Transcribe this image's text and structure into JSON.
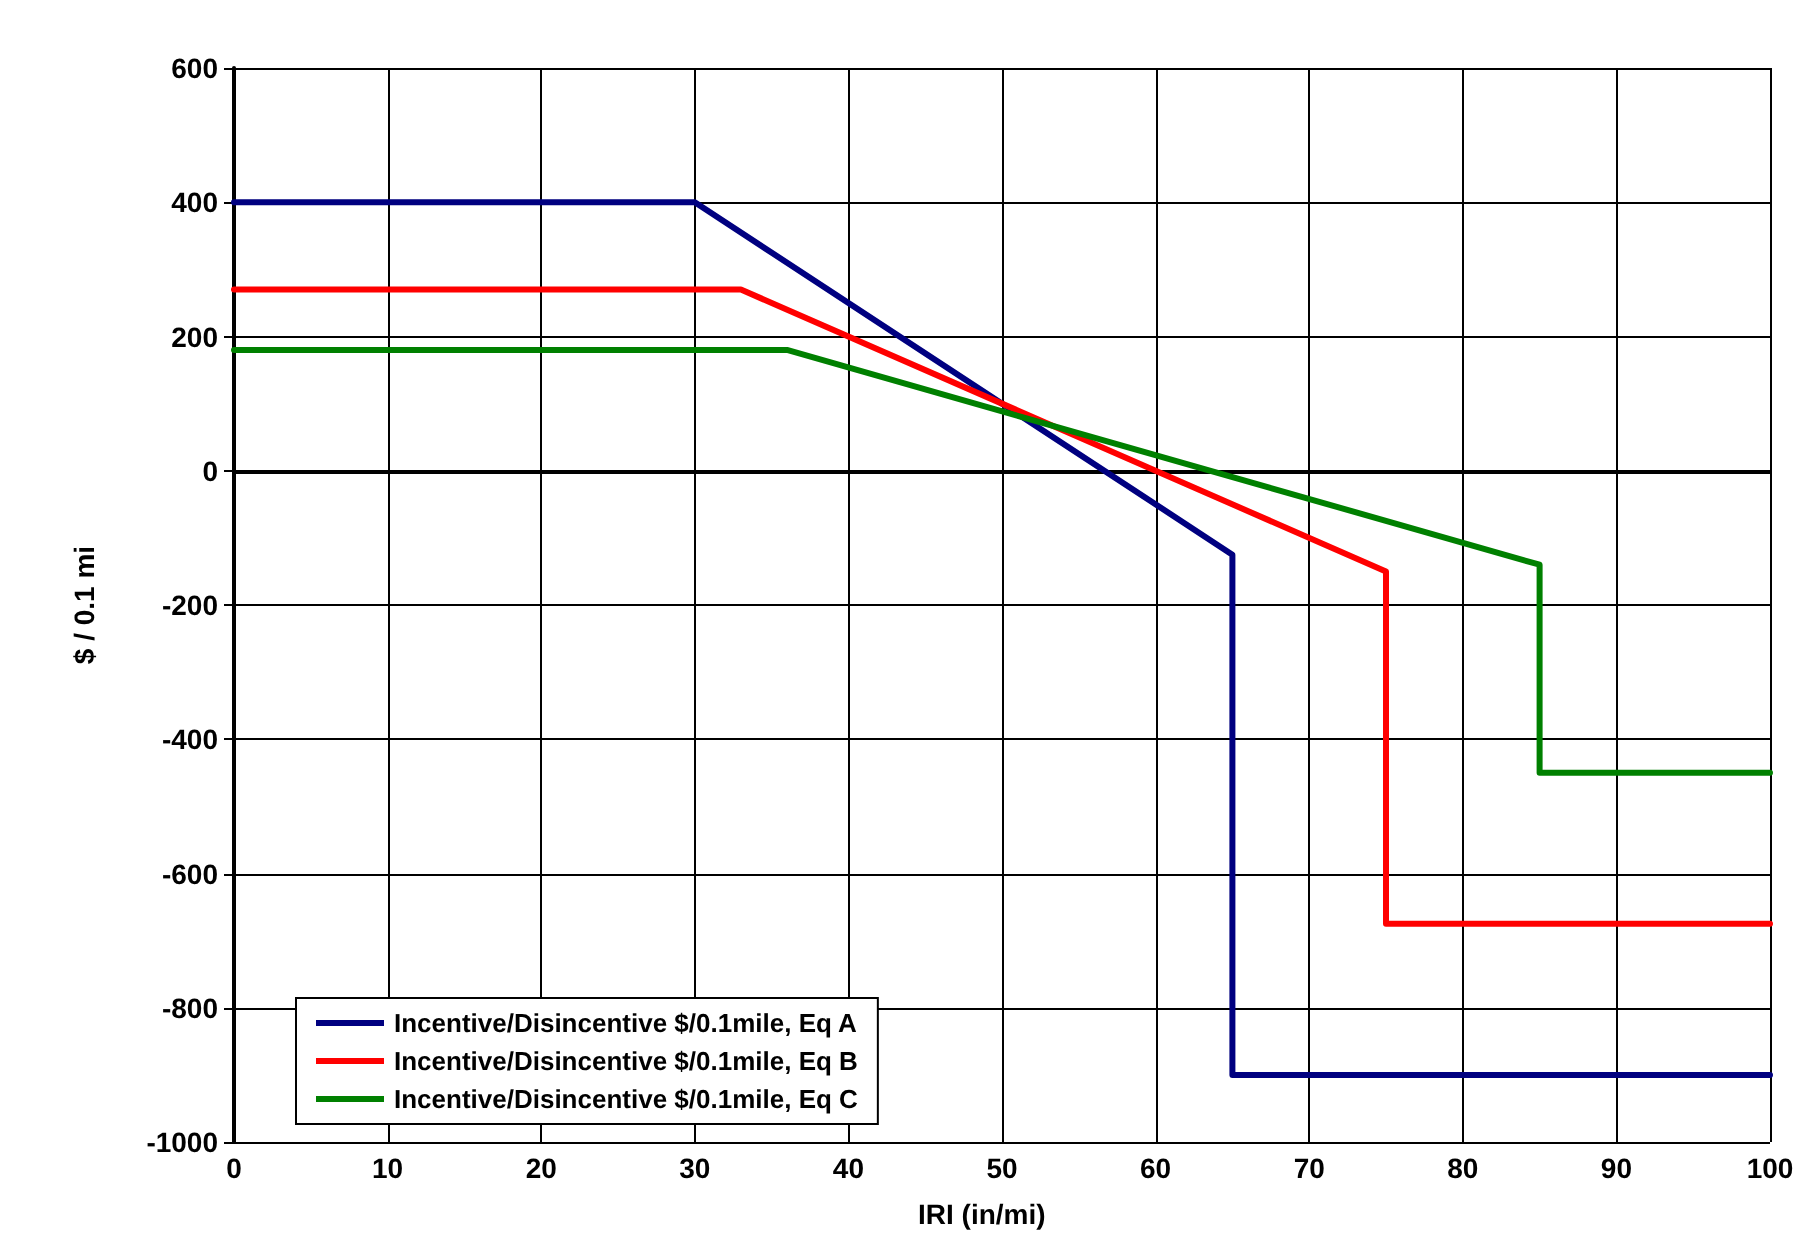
{
  "chart_data": {
    "type": "line",
    "xlabel": "IRI (in/mi)",
    "ylabel": "$ / 0.1 mi",
    "xlim": [
      0,
      100
    ],
    "xticks": [
      0,
      10,
      20,
      30,
      40,
      50,
      60,
      70,
      80,
      90,
      100
    ],
    "ylim": [
      -1000,
      600
    ],
    "yticks": [
      -1000,
      -800,
      -600,
      -400,
      -200,
      0,
      200,
      400,
      600
    ],
    "grid": true,
    "legend": "bottom left",
    "marker": "none",
    "line_style": "solid",
    "series": [
      {
        "name": "Incentive/Disincentive $/0.1mile, Eq A",
        "color": "#000080",
        "x": [
          0,
          30,
          65,
          65,
          100
        ],
        "values": [
          400,
          400,
          -125,
          -900,
          -900
        ]
      },
      {
        "name": "Incentive/Disincentive $/0.1mile, Eq B",
        "color": "#ff0000",
        "x": [
          0,
          33,
          75,
          75,
          100
        ],
        "values": [
          270,
          270,
          -150,
          -675,
          -675
        ]
      },
      {
        "name": "Incentive/Disincentive $/0.1mile, Eq C",
        "color": "#008000",
        "x": [
          0,
          36,
          85,
          85,
          100
        ],
        "values": [
          180,
          180,
          -140,
          -450,
          -450
        ]
      }
    ]
  }
}
